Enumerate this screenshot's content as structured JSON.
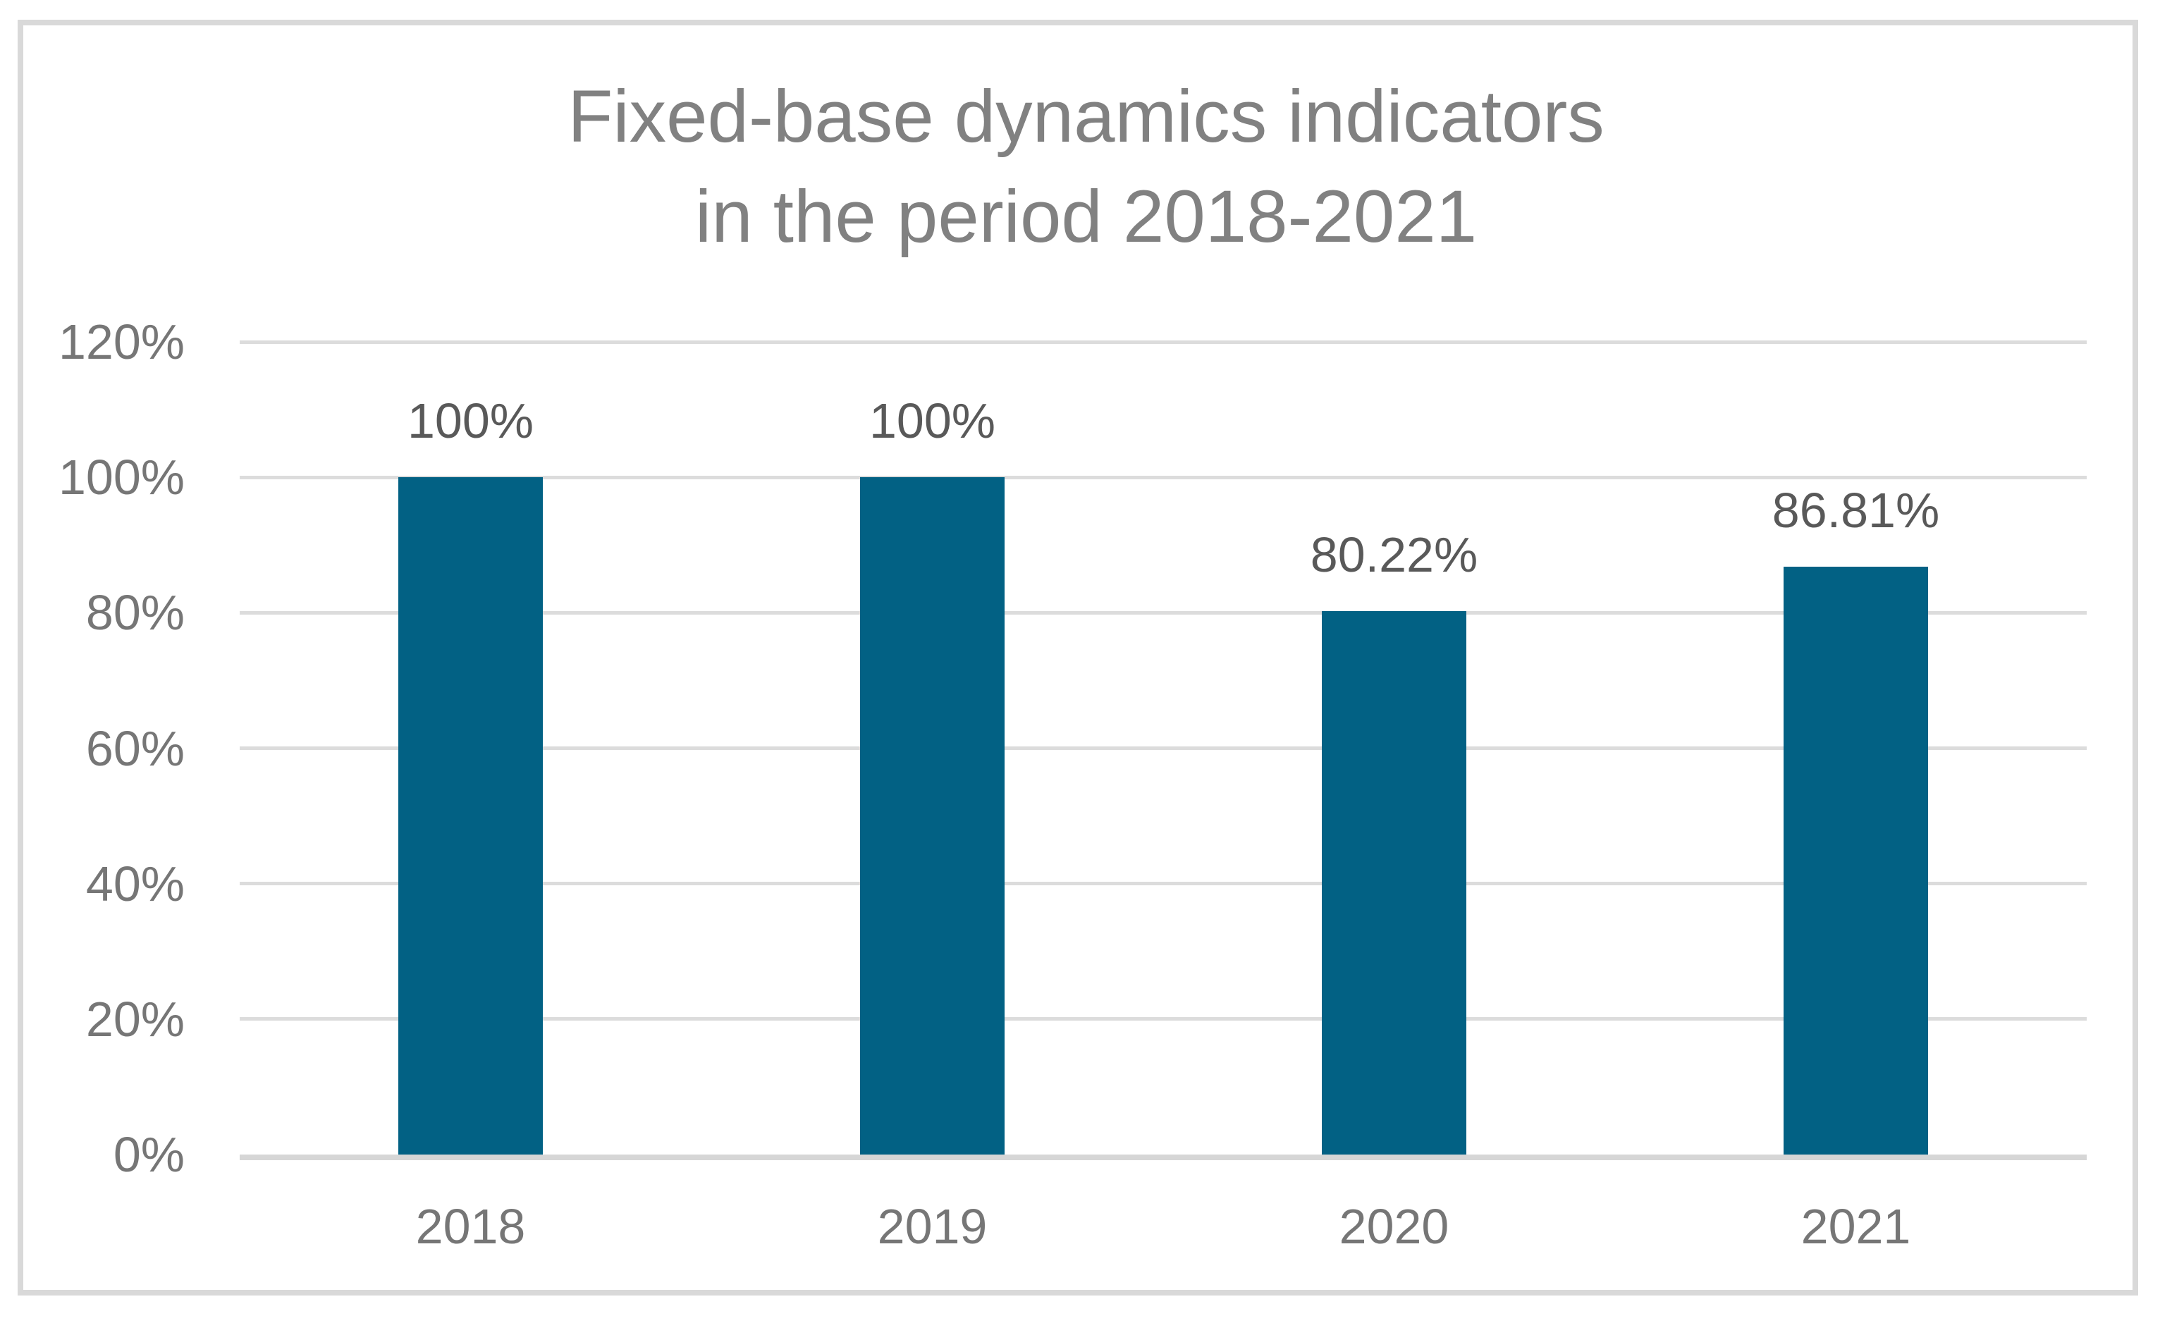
{
  "chart_data": {
    "type": "bar",
    "title": "Fixed-base dynamics indicators in the period 2018-2021",
    "title_lines": [
      "Fixed-base dynamics indicators",
      "in the period 2018-2021"
    ],
    "categories": [
      "2018",
      "2019",
      "2020",
      "2021"
    ],
    "values": [
      100,
      100,
      80.22,
      86.81
    ],
    "data_labels": [
      "100%",
      "100%",
      "80.22%",
      "86.81%"
    ],
    "xlabel": "",
    "ylabel": "",
    "y_ticks": [
      "120%",
      "100%",
      "80%",
      "60%",
      "40%",
      "20%",
      "0%"
    ],
    "ylim": [
      0,
      120
    ],
    "y_tick_step_pct": 20,
    "grid": true,
    "legend": "none",
    "colors": {
      "bar_fill": "#026184",
      "title_text": "#818181",
      "axis_label_text": "#767676",
      "data_label_text": "#595959",
      "gridline": "#DCDCDC",
      "axis_line": "#D6D6D6",
      "frame_border": "#D9D9D9",
      "background": "#FFFFFF"
    }
  }
}
